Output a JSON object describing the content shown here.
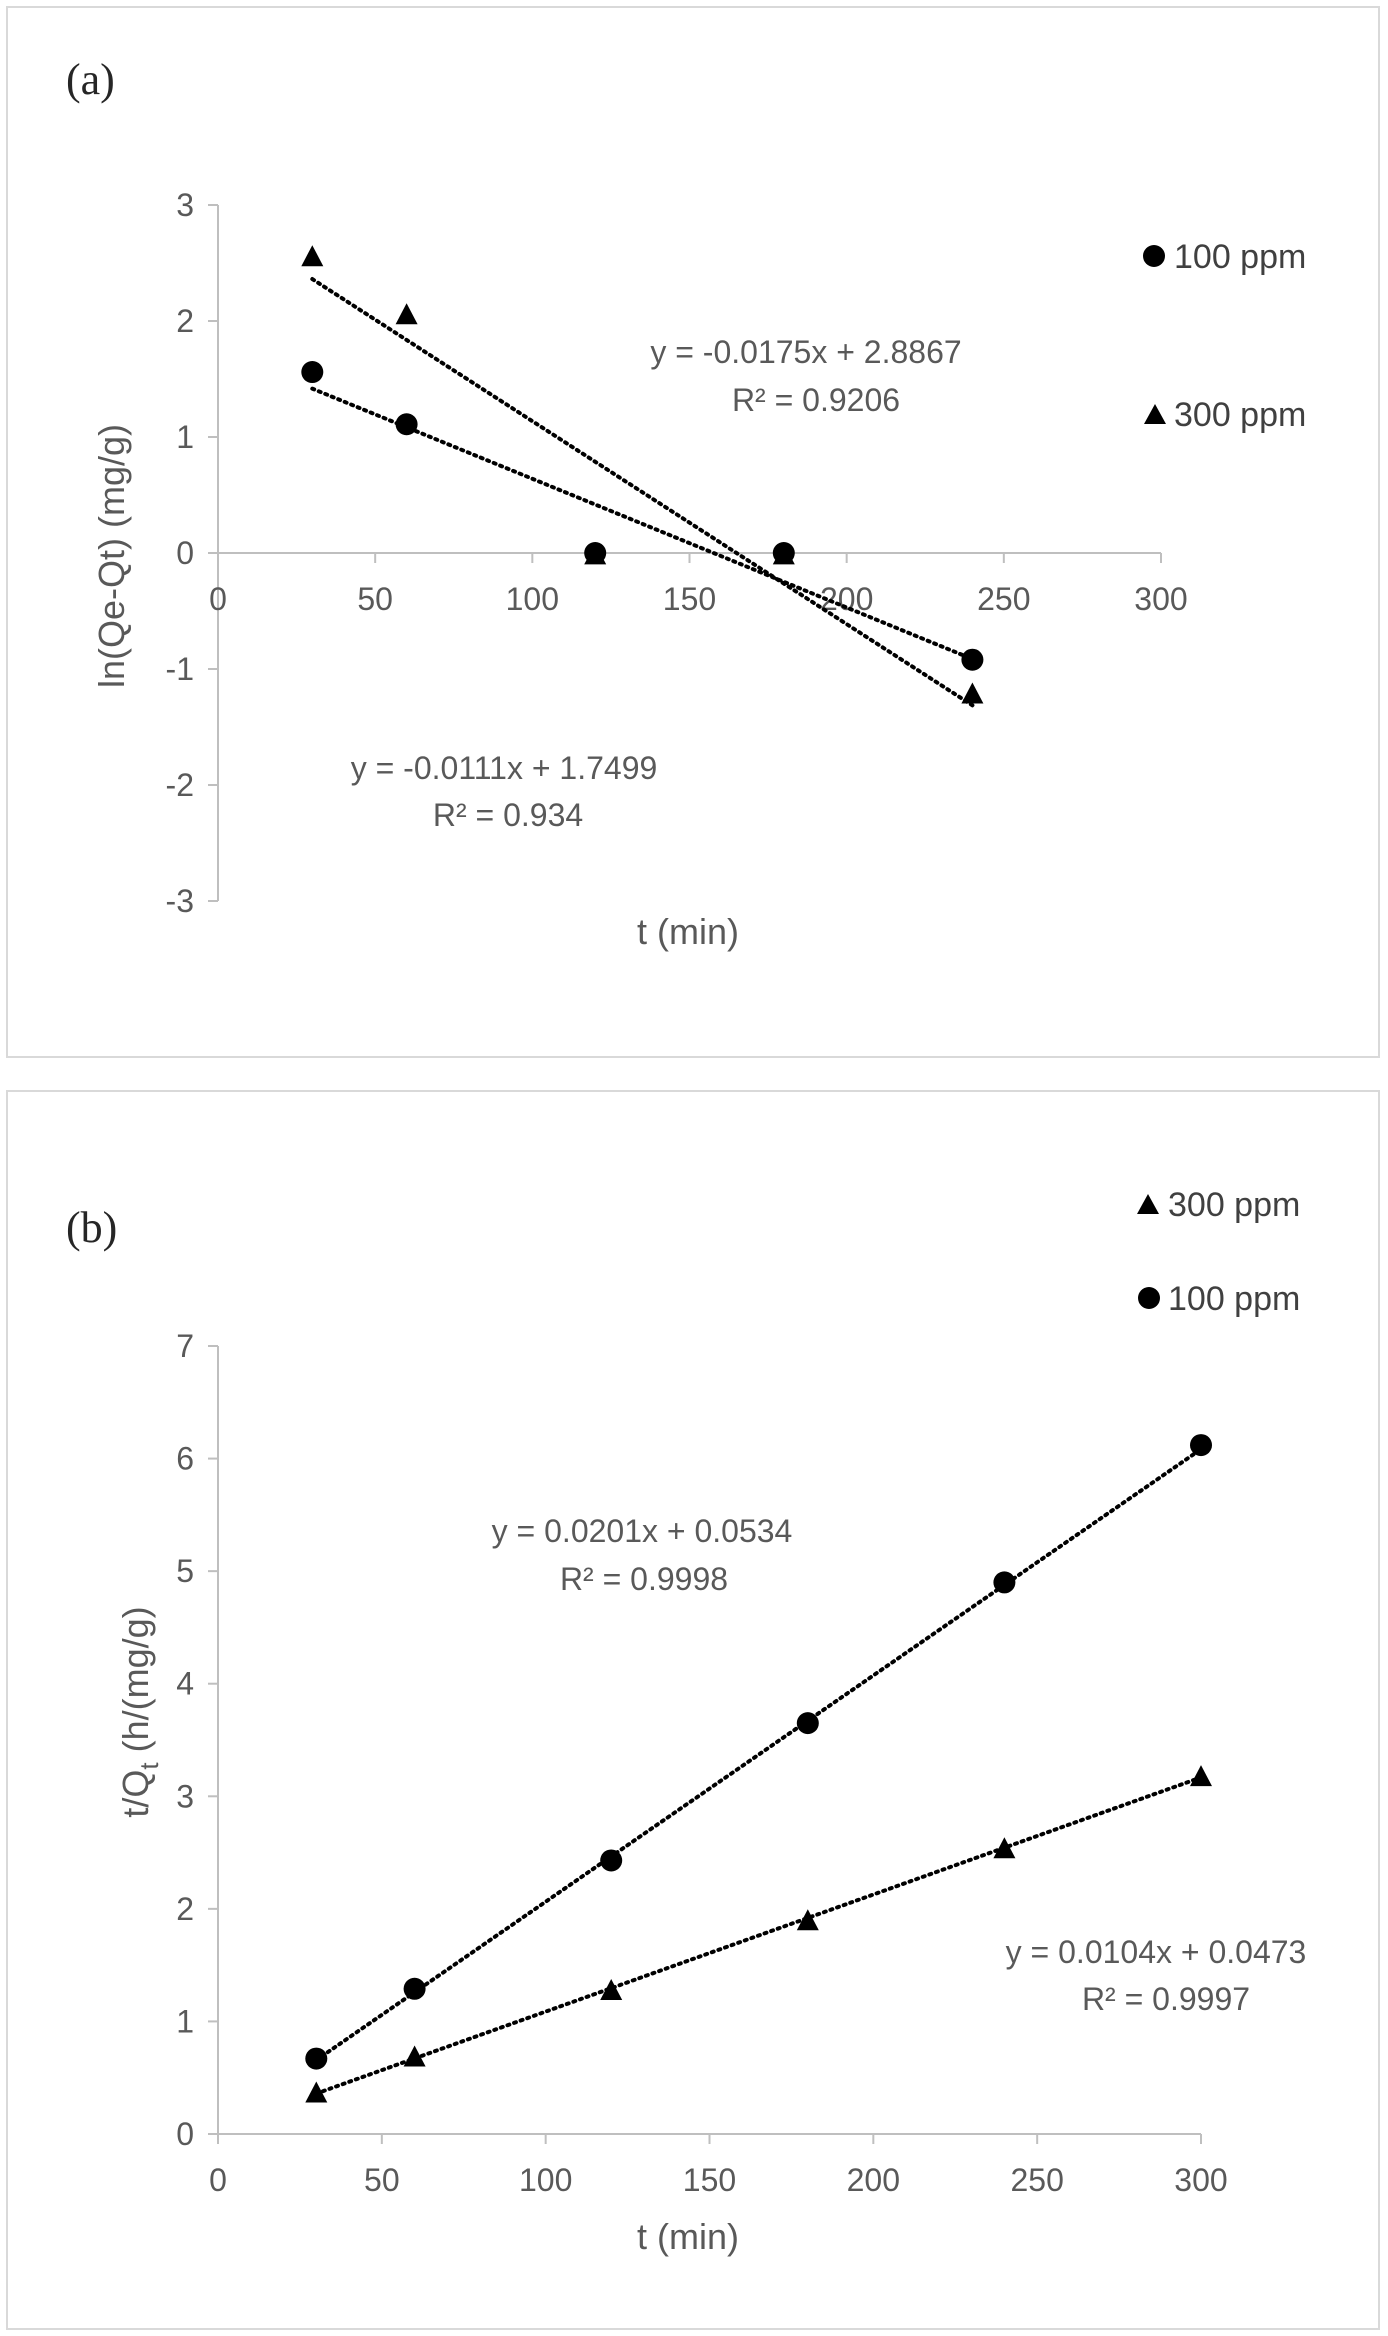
{
  "chart_data": [
    {
      "type": "scatter",
      "panel_label": "(a)",
      "xlabel": "t (min)",
      "ylabel": "ln(Qe-Qt) (mg/g)",
      "xlim": [
        0,
        300
      ],
      "ylim": [
        -3,
        3
      ],
      "xticks": [
        "0",
        "50",
        "100",
        "150",
        "200",
        "250",
        "300"
      ],
      "yticks": [
        "-3",
        "-2",
        "-1",
        "0",
        "1",
        "2",
        "3"
      ],
      "grid": false,
      "legend_position": "right",
      "series": [
        {
          "name": "100 ppm",
          "marker": "circle",
          "x": [
            30,
            60,
            120,
            180,
            240
          ],
          "y": [
            1.56,
            1.11,
            0.0,
            0.0,
            -0.92
          ],
          "trendline": {
            "slope": -0.0111,
            "intercept": 1.7499,
            "x_range": [
              30,
              240
            ],
            "equation": "y = -0.0111x + 1.7499",
            "r2": "R² = 0.934"
          }
        },
        {
          "name": "300 ppm",
          "marker": "triangle",
          "x": [
            30,
            60,
            120,
            180,
            240
          ],
          "y": [
            2.55,
            2.05,
            -0.02,
            -0.02,
            -1.22
          ],
          "trendline": {
            "slope": -0.0175,
            "intercept": 2.8867,
            "x_range": [
              30,
              240
            ],
            "equation": "y = -0.0175x + 2.8867",
            "r2": "R² = 0.9206"
          }
        }
      ]
    },
    {
      "type": "scatter",
      "panel_label": "(b)",
      "xlabel": "t (min)",
      "ylabel_main": "t/Q",
      "ylabel_sub": "t",
      "ylabel_rest": " (h/(mg/g)",
      "xlim": [
        0,
        300
      ],
      "ylim": [
        0,
        7
      ],
      "xticks": [
        "0",
        "50",
        "100",
        "150",
        "200",
        "250",
        "300"
      ],
      "yticks": [
        "0",
        "1",
        "2",
        "3",
        "4",
        "5",
        "6",
        "7"
      ],
      "grid": false,
      "legend_position": "top-right",
      "series": [
        {
          "name": "300 ppm",
          "marker": "triangle",
          "x": [
            30,
            60,
            120,
            180,
            240,
            300
          ],
          "y": [
            0.36,
            0.68,
            1.27,
            1.89,
            2.53,
            3.17
          ],
          "trendline": {
            "slope": 0.0104,
            "intercept": 0.0473,
            "x_range": [
              30,
              300
            ],
            "equation": "y = 0.0104x + 0.0473",
            "r2": "R² = 0.9997"
          }
        },
        {
          "name": "100 ppm",
          "marker": "circle",
          "x": [
            30,
            60,
            120,
            180,
            240,
            300
          ],
          "y": [
            0.67,
            1.29,
            2.43,
            3.65,
            4.9,
            6.12
          ],
          "trendline": {
            "slope": 0.0201,
            "intercept": 0.0534,
            "x_range": [
              30,
              300
            ],
            "equation": "y = 0.0201x + 0.0534",
            "r2": "R² = 0.9998"
          }
        }
      ]
    }
  ]
}
